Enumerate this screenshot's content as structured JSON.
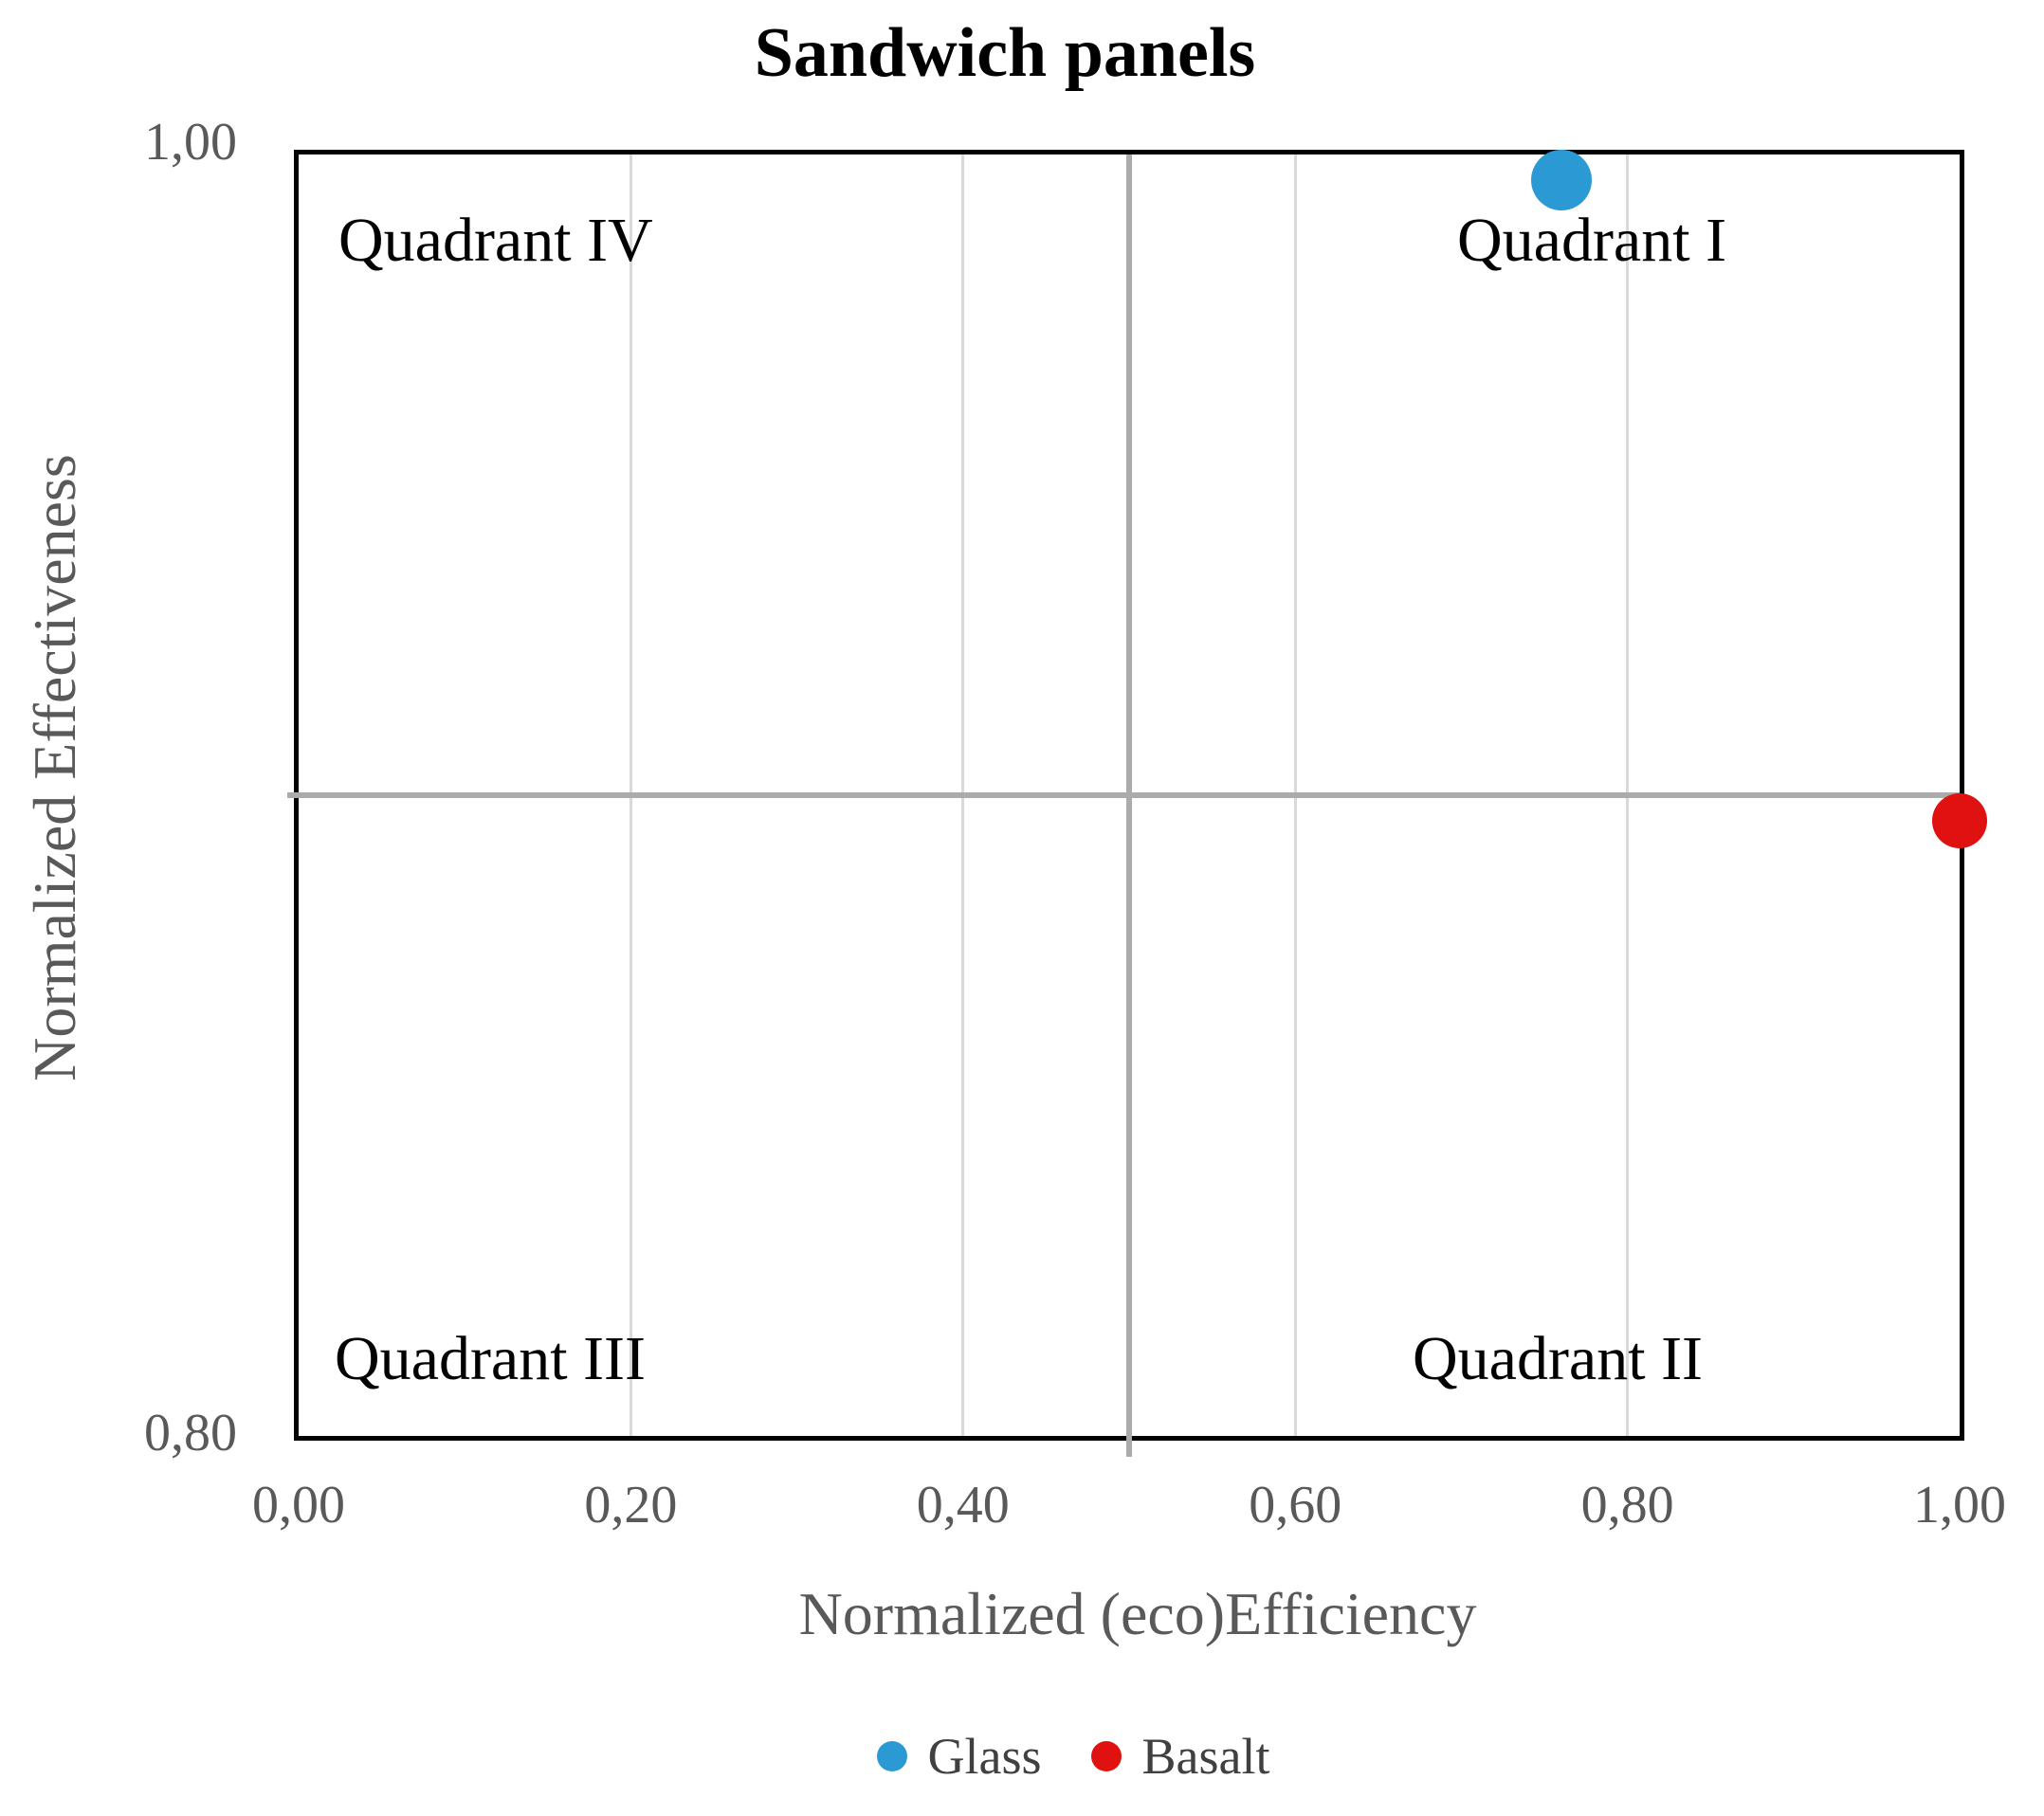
{
  "chart_data": {
    "type": "scatter",
    "title": "Sandwich panels",
    "xlabel": "Normalized (eco)Efficiency",
    "ylabel": "Normalized Effectiveness",
    "xlim": [
      0.0,
      1.0
    ],
    "ylim": [
      0.8,
      1.0
    ],
    "decimal_style": "comma",
    "x_ticks": [
      {
        "value": 0.0,
        "label": "0,00"
      },
      {
        "value": 0.2,
        "label": "0,20"
      },
      {
        "value": 0.4,
        "label": "0,40"
      },
      {
        "value": 0.6,
        "label": "0,60"
      },
      {
        "value": 0.8,
        "label": "0,80"
      },
      {
        "value": 1.0,
        "label": "1,00"
      }
    ],
    "y_tick_labels": {
      "top": "1,00",
      "bottom": "0,80"
    },
    "grid": {
      "vertical_values": [
        0.2,
        0.4,
        0.6,
        0.8
      ],
      "gridline_color": "#d9d9d9",
      "quadrant_divider_x": 0.5,
      "quadrant_divider_y": 0.9,
      "divider_color": "#ababab"
    },
    "series": [
      {
        "name": "Glass",
        "color": "#2b9ad4",
        "marker_px": 64,
        "points": [
          {
            "x": 0.76,
            "y": 0.996
          }
        ]
      },
      {
        "name": "Basalt",
        "color": "#df1111",
        "marker_px": 58,
        "points": [
          {
            "x": 1.0,
            "y": 0.896
          }
        ]
      }
    ],
    "quadrant_labels": {
      "top_left": "Quadrant IV",
      "top_right": "Quadrant I",
      "bottom_left": "Quadrant III",
      "bottom_right": "Quadrant II"
    },
    "legend": {
      "position": "bottom",
      "entries": [
        {
          "label": "Glass",
          "color": "#2b9ad4"
        },
        {
          "label": "Basalt",
          "color": "#df1111"
        }
      ]
    },
    "colors": {
      "axis_border": "#000000",
      "title_text": "#000000",
      "axis_title_text": "#595959",
      "tick_text": "#595959",
      "legend_text": "#404040",
      "quadrant_text": "#000000"
    }
  }
}
